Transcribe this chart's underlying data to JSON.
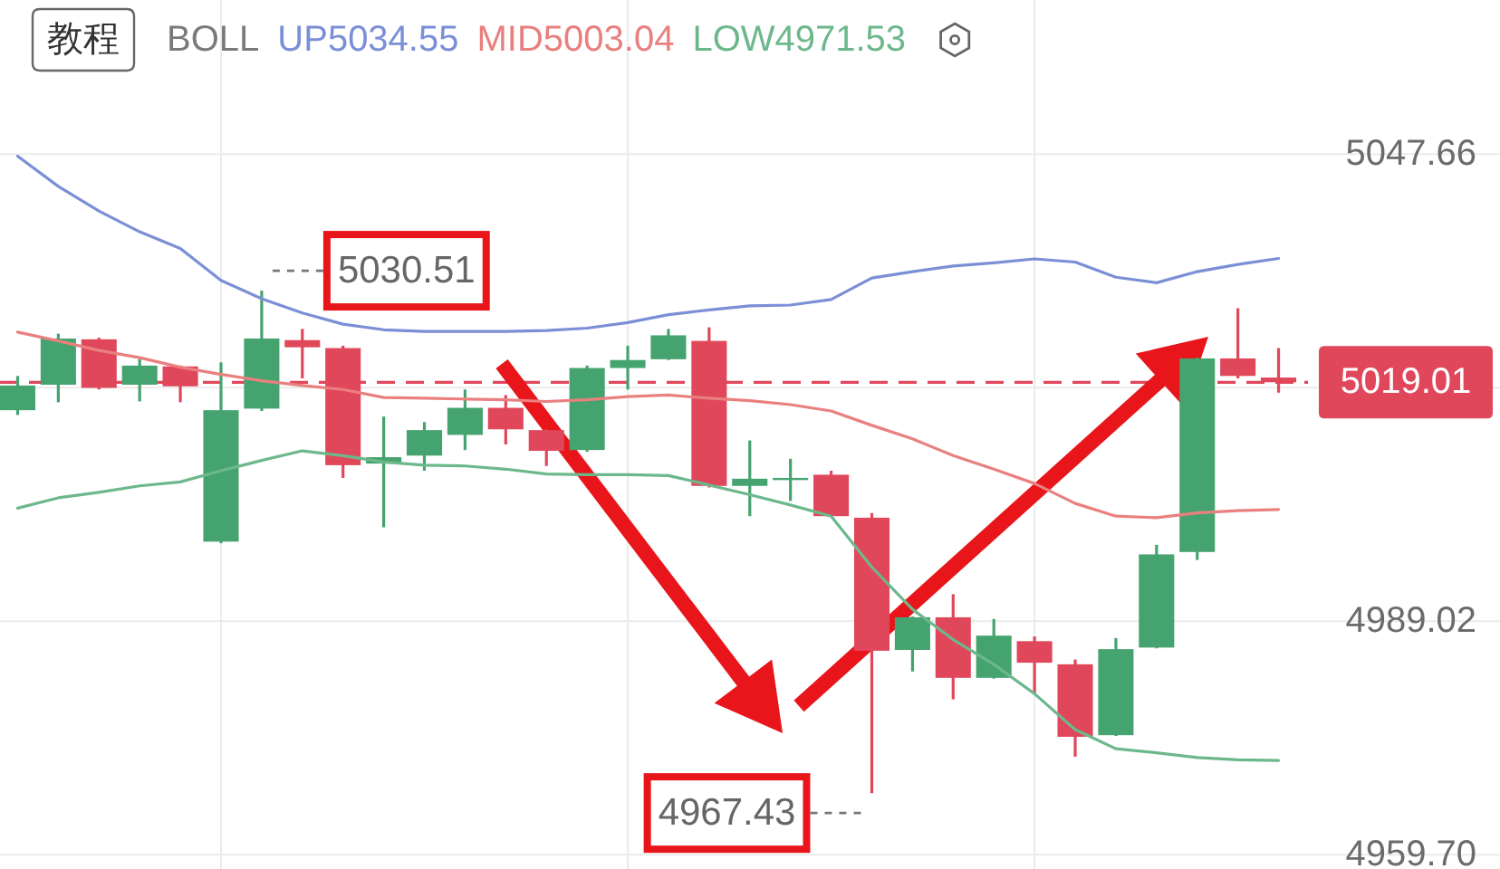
{
  "chart_data": {
    "type": "candlestick",
    "title": "教程",
    "legend_title": "BOLL",
    "categories": [
      null,
      null,
      null,
      null,
      null,
      null,
      null,
      null,
      null,
      null,
      null,
      null,
      null,
      null,
      null,
      null,
      null,
      null,
      null,
      null,
      null,
      null,
      null,
      null,
      null,
      null,
      null,
      null,
      null,
      null,
      null,
      null
    ],
    "ohlc": [
      [
        5015.5,
        5019.8,
        5014.9,
        5018.6
      ],
      [
        5018.7,
        5025.1,
        5016.5,
        5024.5
      ],
      [
        5024.4,
        5024.6,
        5018.1,
        5018.3
      ],
      [
        5018.7,
        5021.9,
        5016.6,
        5021.1
      ],
      [
        5021.0,
        5021.1,
        5016.5,
        5018.5
      ],
      [
        4999.0,
        5021.5,
        4998.8,
        5015.5
      ],
      [
        5015.7,
        5030.51,
        5015.4,
        5024.5
      ],
      [
        5024.3,
        5025.7,
        5019.5,
        5023.4
      ],
      [
        5023.3,
        5023.6,
        5007.0,
        5008.6
      ],
      [
        5008.8,
        5014.7,
        5000.8,
        5009.6
      ],
      [
        5009.8,
        5014.0,
        5007.9,
        5013.0
      ],
      [
        5012.4,
        5018.1,
        5010.5,
        5015.8
      ],
      [
        5015.8,
        5017.4,
        5011.2,
        5013.1
      ],
      [
        5013.0,
        5013.1,
        5008.5,
        5010.4
      ],
      [
        5010.5,
        5021.1,
        5010.3,
        5020.8
      ],
      [
        5020.8,
        5023.6,
        5018.1,
        5021.8
      ],
      [
        5021.9,
        5025.7,
        5021.8,
        5024.9
      ],
      [
        5024.2,
        5025.9,
        5005.8,
        5006.0
      ],
      [
        5006.0,
        5011.7,
        5002.2,
        5006.9
      ],
      [
        5006.9,
        5009.4,
        5004.1,
        5007.0
      ],
      [
        5007.4,
        5007.9,
        5002.1,
        5002.2
      ],
      [
        5002.0,
        5002.6,
        4967.43,
        4985.3
      ],
      [
        4985.4,
        4989.6,
        4982.7,
        4989.5
      ],
      [
        4989.5,
        4992.4,
        4979.2,
        4981.9
      ],
      [
        4981.9,
        4989.3,
        4981.8,
        4987.2
      ],
      [
        4986.5,
        4987.1,
        4979.9,
        4983.8
      ],
      [
        4983.6,
        4984.2,
        4972.0,
        4974.5
      ],
      [
        4974.7,
        4986.9,
        4974.6,
        4985.5
      ],
      [
        4985.7,
        4998.6,
        4985.6,
        4997.4
      ],
      [
        4997.7,
        5022.1,
        4996.7,
        5022.0
      ],
      [
        5022.0,
        5028.3,
        5019.5,
        5019.8
      ],
      [
        5019.6,
        5023.3,
        5017.7,
        5019.01
      ]
    ],
    "colors": [
      "#45a36f",
      "#45a36f",
      "#e0475b",
      "#45a36f",
      "#e0475b",
      "#45a36f",
      "#45a36f",
      "#e0475b",
      "#e0475b",
      "#45a36f",
      "#45a36f",
      "#45a36f",
      "#e0475b",
      "#e0475b",
      "#45a36f",
      "#45a36f",
      "#45a36f",
      "#e0475b",
      "#45a36f",
      "#45a36f",
      "#e0475b",
      "#e0475b",
      "#45a36f",
      "#e0475b",
      "#45a36f",
      "#e0475b",
      "#e0475b",
      "#45a36f",
      "#45a36f",
      "#45a36f",
      "#e0475b",
      "#e0475b"
    ],
    "series": [
      {
        "name": "UP5034.55",
        "type": "line",
        "color": "#7b8fd6",
        "values": [
          5047.4,
          5043.6,
          5040.5,
          5037.9,
          5035.8,
          5031.8,
          5029.5,
          5027.7,
          5026.3,
          5025.6,
          5025.4,
          5025.4,
          5025.4,
          5025.5,
          5025.8,
          5026.5,
          5027.5,
          5028.1,
          5028.6,
          5028.7,
          5029.4,
          5032.1,
          5032.9,
          5033.6,
          5034.0,
          5034.5,
          5034.1,
          5032.2,
          5031.5,
          5032.9,
          5033.8,
          5034.55
        ]
      },
      {
        "name": "MID5003.04",
        "type": "line",
        "color": "#e9807f",
        "values": [
          5025.3,
          5024.2,
          5023.0,
          5022.1,
          5020.9,
          5020.0,
          5019.2,
          5018.6,
          5018.1,
          5017.1,
          5017.0,
          5016.9,
          5016.8,
          5016.6,
          5016.8,
          5017.2,
          5017.4,
          5017.0,
          5016.7,
          5016.2,
          5015.4,
          5013.6,
          5011.9,
          5009.8,
          5008.1,
          5006.3,
          5003.8,
          5002.2,
          5002.0,
          5002.6,
          5002.9,
          5003.04
        ]
      },
      {
        "name": "LOW4971.53",
        "type": "line",
        "color": "#6cb88c",
        "values": [
          5003.2,
          5004.5,
          5005.2,
          5006.0,
          5006.5,
          5007.9,
          5009.2,
          5010.4,
          5009.8,
          5009.0,
          5008.6,
          5008.5,
          5008.1,
          5007.5,
          5007.4,
          5007.4,
          5007.3,
          5006.1,
          5004.9,
          5003.6,
          5002.2,
          4995.8,
          4990.5,
          4986.7,
          4983.6,
          4979.9,
          4975.4,
          4973.0,
          4972.5,
          4971.9,
          4971.6,
          4971.53
        ]
      }
    ],
    "ylim": [
      4957.9,
      5067.0
    ],
    "yticks": [
      5047.66,
      {
        "value": 5018.34,
        "label": null
      },
      4989.02,
      {
        "value": 4959.7,
        "label": "4959.70"
      }
    ],
    "ref_lines": [
      {
        "axis": "y",
        "value": 5019.01,
        "label": "5019.01",
        "color": "#e0475b",
        "line_style": "dashed"
      }
    ],
    "annotations": [
      "5030.51",
      "4967.43"
    ],
    "grid": true,
    "legend": "top",
    "tick_labels": "y"
  }
}
